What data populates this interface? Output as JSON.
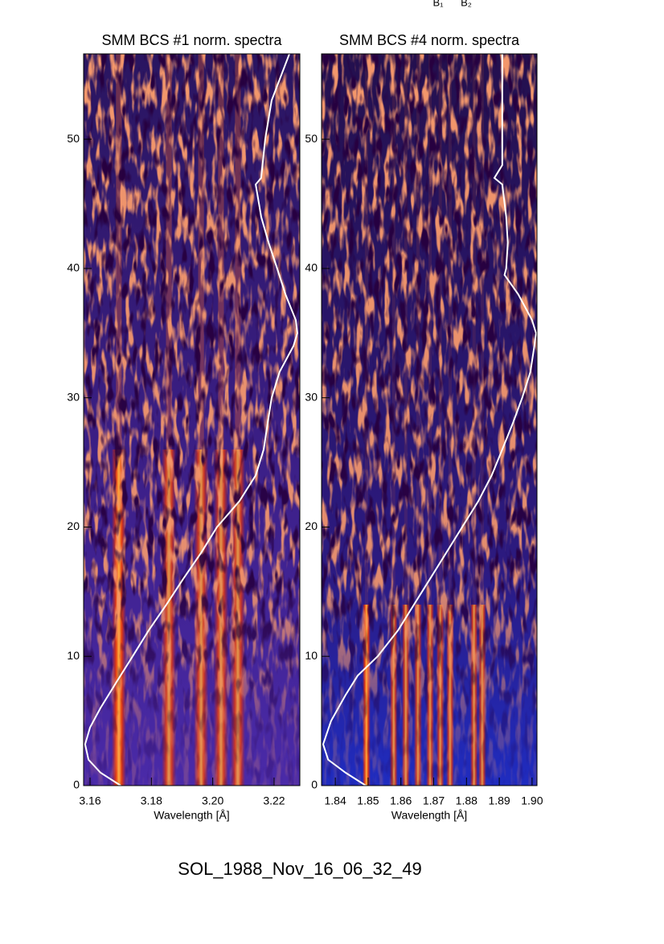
{
  "annotations": [
    "B₁",
    "B₂"
  ],
  "footer": "SOL_1988_Nov_16_06_32_49",
  "chart_data": [
    {
      "type": "spectrogram",
      "title": "SMM BCS #1 norm. spectra",
      "x_label": "Wavelength [Å]",
      "xlim": [
        3.1579,
        3.2284
      ],
      "ylim": [
        0,
        56.6
      ],
      "xticks": [
        3.16,
        3.18,
        {
          "value": 3.2,
          "label": "3.20"
        },
        3.22
      ],
      "yticks": [
        0,
        10,
        20,
        30,
        40,
        50
      ],
      "emission_lines": [
        3.1694,
        3.1857,
        3.1962,
        3.2027,
        3.2082
      ],
      "light_curve": {
        "color": "#ffffff",
        "time": [
          0,
          1,
          2,
          3.2,
          4.5,
          6,
          8,
          10,
          12,
          14,
          16,
          18,
          20,
          22,
          24,
          26,
          28,
          30,
          32,
          34,
          35,
          36,
          38,
          40,
          42,
          44,
          46.5,
          47,
          50,
          53,
          56.6
        ],
        "position": [
          3.17,
          3.1634,
          3.1595,
          3.1584,
          3.16,
          3.1634,
          3.1686,
          3.1739,
          3.1791,
          3.1849,
          3.1904,
          3.1962,
          3.2014,
          3.2087,
          3.214,
          3.2166,
          3.2179,
          3.2192,
          3.2218,
          3.2263,
          3.2276,
          3.2271,
          3.2237,
          3.221,
          3.2182,
          3.2158,
          3.214,
          3.2158,
          3.2171,
          3.2192,
          3.225
        ]
      }
    },
    {
      "type": "spectrogram",
      "title": "SMM BCS #4 norm. spectra",
      "x_label": "Wavelength [Å]",
      "xlim": [
        1.8358,
        1.9015
      ],
      "ylim": [
        0,
        56.6
      ],
      "xticks": [
        1.84,
        1.85,
        1.86,
        1.87,
        1.88,
        1.89,
        {
          "value": 1.9,
          "label": "1.90"
        }
      ],
      "yticks": [
        0,
        10,
        20,
        30,
        40,
        50
      ],
      "emission_lines": [
        1.8495,
        1.8578,
        1.8615,
        1.8652,
        1.8689,
        1.872,
        1.875,
        1.8823,
        1.8848
      ],
      "light_curve": {
        "color": "#ffffff",
        "time": [
          0,
          1,
          2,
          3.2,
          5,
          7,
          8.5,
          10,
          12,
          14,
          16,
          18,
          20,
          22,
          24,
          26,
          28,
          30,
          32,
          34,
          35,
          36,
          38,
          39.5,
          40,
          42,
          44,
          46.5,
          47,
          48,
          56.6
        ],
        "position": [
          1.8493,
          1.8431,
          1.8378,
          1.8363,
          1.8387,
          1.8431,
          1.8468,
          1.8529,
          1.8591,
          1.864,
          1.8689,
          1.8738,
          1.8787,
          1.8836,
          1.8877,
          1.8909,
          1.8941,
          1.897,
          1.8995,
          1.9007,
          1.9012,
          1.9,
          1.8958,
          1.8916,
          1.8921,
          1.8926,
          1.8921,
          1.8909,
          1.8885,
          1.8909,
          1.8909
        ]
      }
    }
  ]
}
